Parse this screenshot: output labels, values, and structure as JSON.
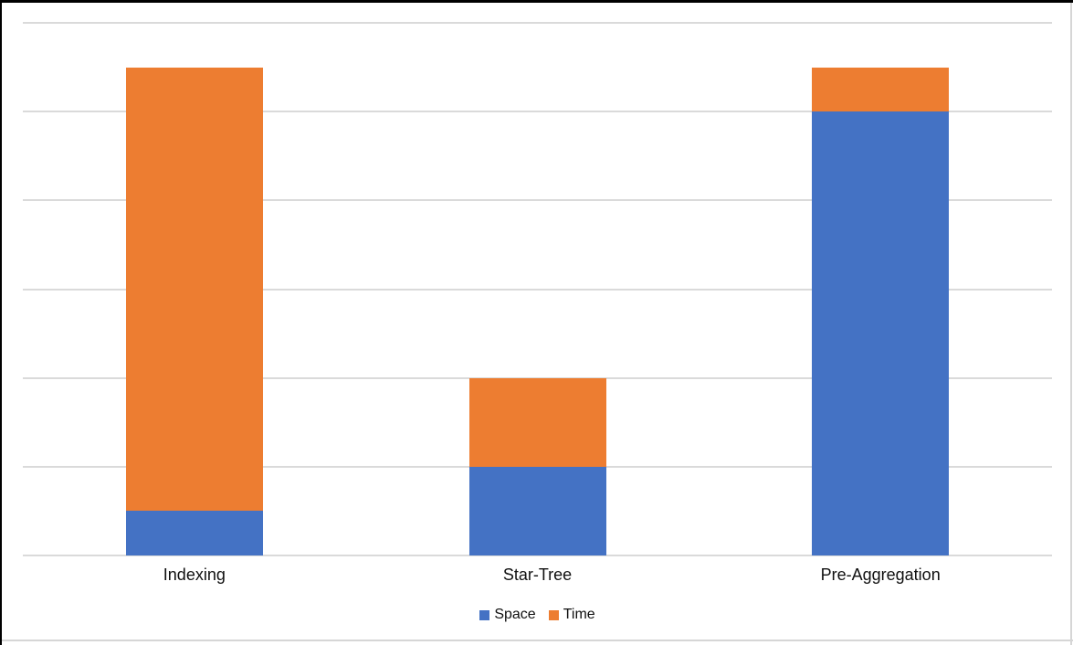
{
  "window": {
    "background": "#ffffff",
    "edge_color": "#000000",
    "frame_color": "#d6d6d6"
  },
  "chart_data": {
    "type": "bar",
    "stacked": true,
    "title": "",
    "xlabel": "",
    "ylabel": "",
    "categories": [
      "Indexing",
      "Star-Tree",
      "Pre-Aggregation"
    ],
    "series": [
      {
        "name": "Space",
        "color": "#4472C4",
        "values": [
          0.5,
          1,
          5
        ]
      },
      {
        "name": "Time",
        "color": "#ED7D31",
        "values": [
          5,
          1,
          0.5
        ]
      }
    ],
    "ylim": [
      0,
      6
    ],
    "gridline_step": 1,
    "grid": true,
    "gridline_color": "#dadada",
    "y_tick_labels_shown": false,
    "legend_position": "bottom"
  }
}
